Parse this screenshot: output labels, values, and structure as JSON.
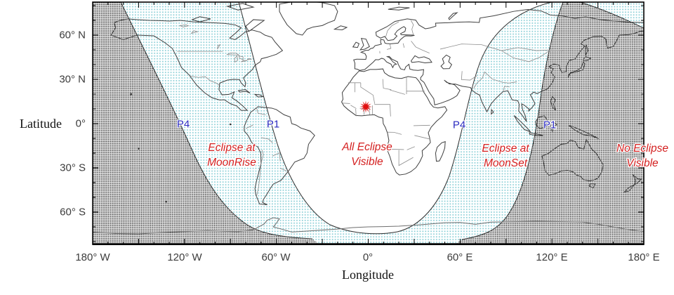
{
  "figure": {
    "xlabel": "Longitude",
    "ylabel": "Latitude",
    "x_ticks": [
      "180° W",
      "120° W",
      "60° W",
      "0°",
      "60° E",
      "120° E",
      "180° E"
    ],
    "y_ticks": [
      "60° N",
      "30° N",
      "0°",
      "30° S",
      "60° S"
    ],
    "tick_minor_interval_deg": 10,
    "tick_major_interval_deg": 30
  },
  "regions": [
    {
      "id": "moonrise",
      "line1": "Eclipse at",
      "line2": "MoonRise"
    },
    {
      "id": "all-visible",
      "line1": "All Eclipse",
      "line2": "Visible"
    },
    {
      "id": "moonset",
      "line1": "Eclipse at",
      "line2": "MoonSet"
    },
    {
      "id": "no-eclipse",
      "line1": "No Eclipse",
      "line2": "Visible"
    }
  ],
  "contacts": [
    {
      "text": "P4",
      "side": "west"
    },
    {
      "text": "P1",
      "side": "west"
    },
    {
      "text": "P4",
      "side": "east"
    },
    {
      "text": "P1",
      "side": "east"
    }
  ],
  "marker": {
    "name": "greatest-eclipse-star"
  },
  "colors": {
    "region_label": "#d42020",
    "contact_label": "#2b2bc0",
    "marker": "#e01010",
    "no_eclipse_dot": "#1a1a1a",
    "partial_dot": "#85cdd5"
  }
}
